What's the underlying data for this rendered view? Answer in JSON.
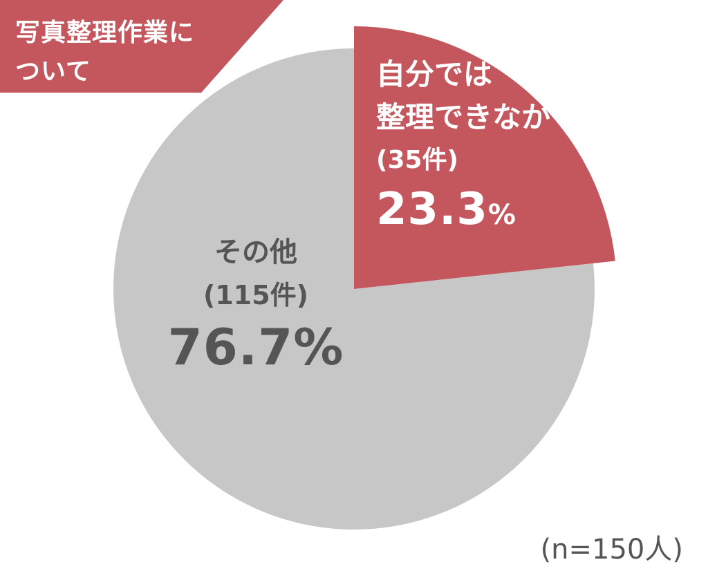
{
  "title": {
    "line1": "写真整理作業に",
    "line2": "ついて"
  },
  "chart_data": {
    "type": "pie",
    "total_label": "(n=150人)",
    "slices": [
      {
        "name": "自分では整理できなかった",
        "label_lines": [
          "自分では",
          "整理できなかった"
        ],
        "count_label": "(35件)",
        "count": 35,
        "value": 23.3,
        "value_number": "23.3",
        "value_unit": "%",
        "color": "#c4575e"
      },
      {
        "name": "その他",
        "label_lines": [
          "その他"
        ],
        "count_label": "(115件)",
        "count": 115,
        "value": 76.7,
        "value_number": "76.7",
        "value_unit": "%",
        "color": "#c8c7c7"
      }
    ]
  }
}
